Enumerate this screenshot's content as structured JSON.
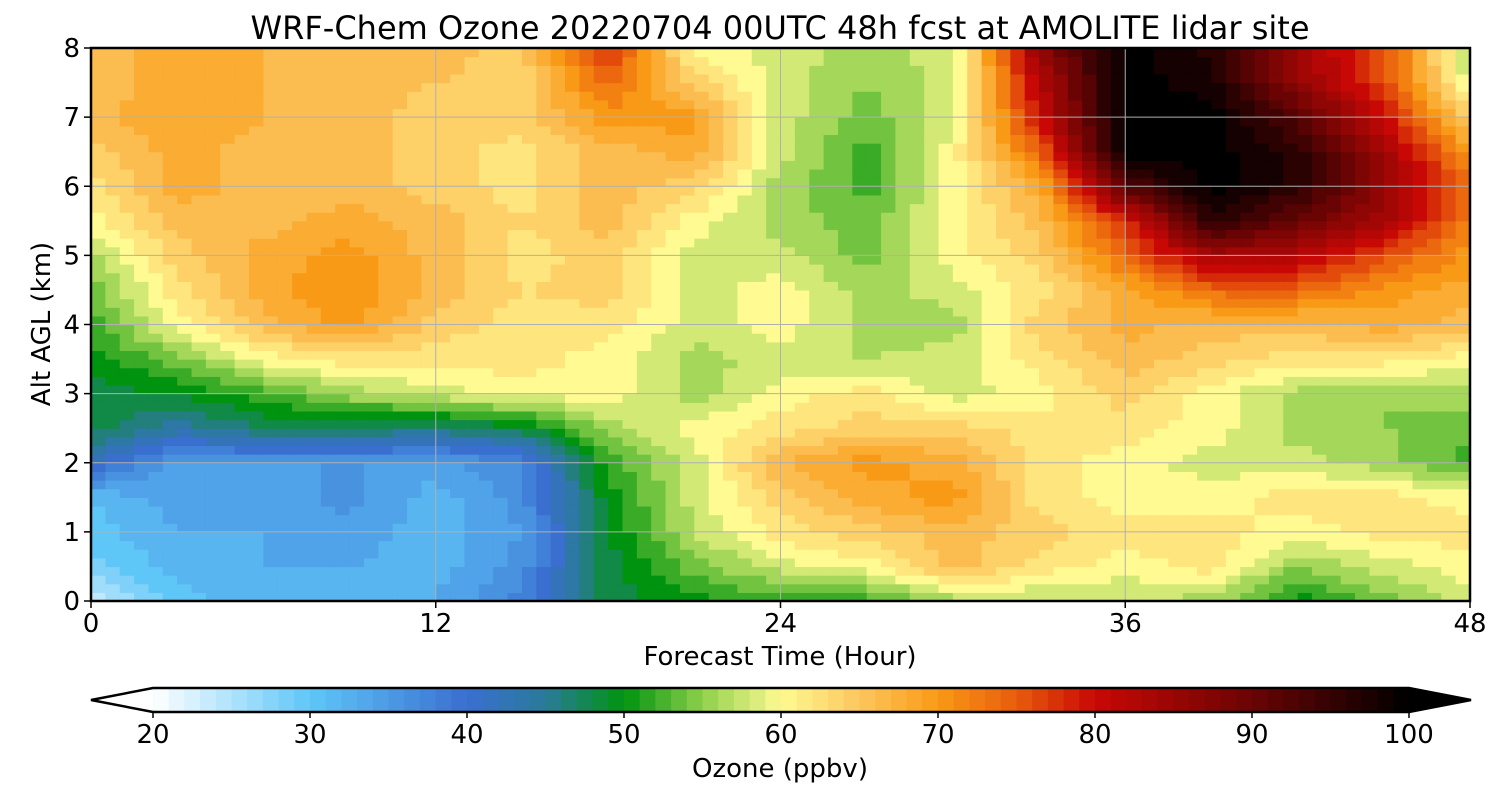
{
  "chart_data": {
    "type": "heatmap",
    "title": "WRF-Chem Ozone  20220704 00UTC 48h fcst at AMOLITE lidar site",
    "xlabel": "Forecast Time (Hour)",
    "ylabel": "Alt AGL (km)",
    "xlim": [
      0,
      48
    ],
    "ylim": [
      0,
      8
    ],
    "x_ticks": [
      "0",
      "12",
      "24",
      "36",
      "48"
    ],
    "y_ticks": [
      "0",
      "1",
      "2",
      "3",
      "4",
      "5",
      "6",
      "7",
      "8"
    ],
    "grid": true,
    "x": [
      0,
      3,
      6,
      9,
      12,
      15,
      18,
      21,
      24,
      27,
      30,
      33,
      36,
      39,
      42,
      45,
      48
    ],
    "y": [
      0.0,
      0.5,
      1.0,
      1.5,
      2.0,
      2.5,
      3.0,
      3.5,
      4.0,
      4.5,
      5.0,
      5.5,
      6.0,
      6.5,
      7.0,
      7.5,
      8.0
    ],
    "z": [
      [
        24,
        30,
        32,
        33,
        33,
        38,
        48,
        50,
        52,
        52,
        56,
        57,
        57,
        56,
        50,
        54,
        58
      ],
      [
        28,
        32,
        33,
        33,
        32,
        36,
        48,
        54,
        58,
        60,
        66,
        62,
        60,
        62,
        55,
        58,
        60
      ],
      [
        30,
        33,
        33,
        34,
        32,
        35,
        49,
        57,
        62,
        64,
        66,
        64,
        62,
        62,
        60,
        62,
        62
      ],
      [
        31,
        34,
        33,
        36,
        32,
        36,
        50,
        58,
        64,
        68,
        70,
        62,
        60,
        60,
        62,
        62,
        60
      ],
      [
        42,
        34,
        35,
        35,
        34,
        37,
        52,
        58,
        67,
        70,
        68,
        62,
        60,
        58,
        58,
        56,
        52
      ],
      [
        48,
        44,
        47,
        47,
        46,
        48,
        56,
        60,
        62,
        64,
        64,
        62,
        62,
        60,
        56,
        55,
        54
      ],
      [
        48,
        49,
        52,
        56,
        58,
        60,
        60,
        56,
        60,
        62,
        58,
        60,
        64,
        60,
        56,
        55,
        56
      ],
      [
        50,
        54,
        60,
        62,
        62,
        62,
        60,
        56,
        58,
        57,
        58,
        62,
        66,
        64,
        62,
        62,
        60
      ],
      [
        52,
        60,
        66,
        70,
        64,
        62,
        62,
        58,
        60,
        56,
        56,
        64,
        68,
        66,
        66,
        68,
        66
      ],
      [
        54,
        62,
        68,
        71,
        66,
        63,
        64,
        58,
        60,
        56,
        58,
        62,
        68,
        74,
        74,
        70,
        68
      ],
      [
        56,
        64,
        68,
        70,
        66,
        62,
        64,
        58,
        58,
        54,
        60,
        64,
        74,
        84,
        82,
        76,
        70
      ],
      [
        60,
        66,
        66,
        68,
        66,
        63,
        66,
        60,
        56,
        54,
        60,
        66,
        78,
        96,
        90,
        84,
        72
      ],
      [
        62,
        68,
        66,
        66,
        64,
        62,
        66,
        64,
        56,
        52,
        60,
        68,
        92,
        100,
        96,
        86,
        74
      ],
      [
        64,
        68,
        66,
        66,
        64,
        62,
        66,
        68,
        58,
        52,
        60,
        74,
        100,
        100,
        96,
        84,
        70
      ],
      [
        66,
        69,
        67,
        66,
        64,
        64,
        70,
        70,
        58,
        54,
        58,
        80,
        100,
        100,
        92,
        80,
        64
      ],
      [
        66,
        68,
        67,
        66,
        65,
        64,
        74,
        64,
        58,
        55,
        58,
        82,
        100,
        98,
        86,
        76,
        58
      ],
      [
        66,
        68,
        67,
        66,
        66,
        64,
        78,
        60,
        58,
        56,
        58,
        86,
        100,
        96,
        84,
        76,
        56
      ]
    ],
    "colorbar": {
      "label": "Ozone  (ppbv)",
      "min": 20,
      "max": 100,
      "ticks": [
        "20",
        "30",
        "40",
        "50",
        "60",
        "70",
        "80",
        "90",
        "100"
      ],
      "extend": "both",
      "stops": [
        {
          "v": 20,
          "c": "#ffffff"
        },
        {
          "v": 30,
          "c": "#5fc6f8"
        },
        {
          "v": 40,
          "c": "#3a6fd0"
        },
        {
          "v": 45,
          "c": "#2a7a9a"
        },
        {
          "v": 50,
          "c": "#00930f"
        },
        {
          "v": 55,
          "c": "#8fd04c"
        },
        {
          "v": 60,
          "c": "#fffa92"
        },
        {
          "v": 65,
          "c": "#fcc65e"
        },
        {
          "v": 70,
          "c": "#f99a16"
        },
        {
          "v": 75,
          "c": "#e85c0d"
        },
        {
          "v": 80,
          "c": "#c80805"
        },
        {
          "v": 90,
          "c": "#6a0404"
        },
        {
          "v": 100,
          "c": "#000000"
        }
      ]
    }
  }
}
